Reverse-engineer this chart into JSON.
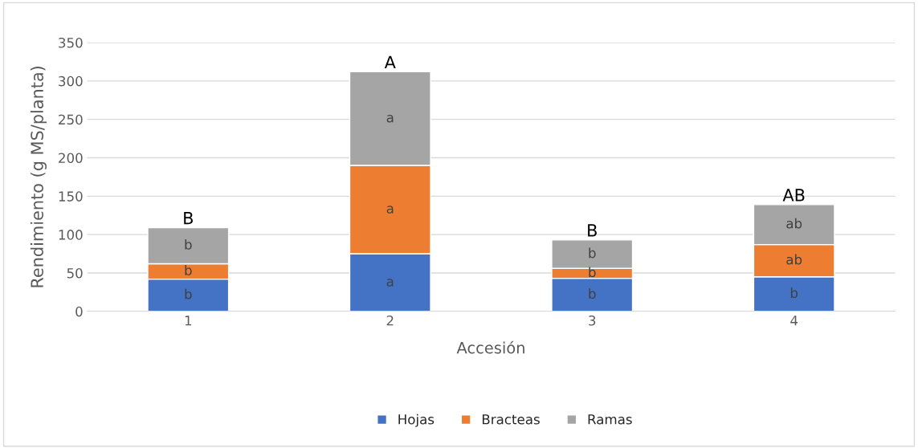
{
  "chart_data": {
    "type": "bar",
    "stacked": true,
    "xlabel": "Accesión",
    "ylabel": "Rendimiento (g MS/planta)",
    "categories": [
      "1",
      "2",
      "3",
      "4"
    ],
    "series": [
      {
        "name": "Hojas",
        "color": "#4472c4",
        "values": [
          42,
          75,
          43,
          45
        ],
        "value_labels": [
          "b",
          "a",
          "b",
          "b"
        ]
      },
      {
        "name": "Bracteas",
        "color": "#ed7d31",
        "values": [
          20,
          115,
          13,
          42
        ],
        "value_labels": [
          "b",
          "a",
          "b",
          "ab"
        ]
      },
      {
        "name": "Ramas",
        "color": "#a5a5a5",
        "values": [
          47,
          122,
          37,
          52
        ],
        "value_labels": [
          "b",
          "a",
          "b",
          "ab"
        ]
      }
    ],
    "ylim": [
      0,
      350
    ],
    "yticks": [
      0,
      50,
      100,
      150,
      200,
      250,
      300,
      350
    ],
    "grid": "y",
    "legend": "bottom",
    "annotations": [
      {
        "text": "B",
        "x": "1",
        "y": 109
      },
      {
        "text": "A",
        "x": "2",
        "y": 312
      },
      {
        "text": "B",
        "x": "3",
        "y": 93
      },
      {
        "text": "AB",
        "x": "4",
        "y": 139
      }
    ]
  }
}
